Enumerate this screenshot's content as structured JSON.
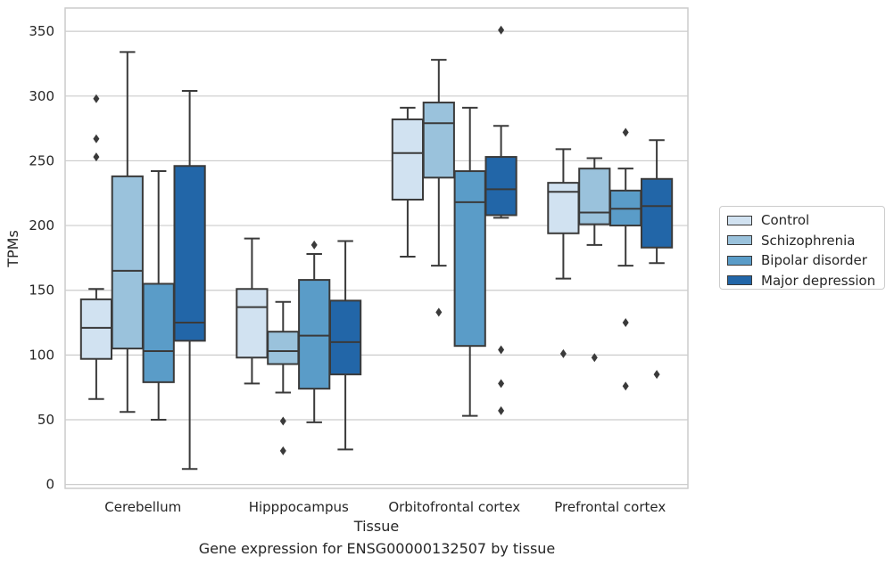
{
  "chart_data": {
    "type": "box",
    "title": "Gene expression for ENSG00000132507 by tissue",
    "xlabel": "Tissue",
    "ylabel": "TPMs",
    "ylim": [
      -3,
      368
    ],
    "yticks": [
      0,
      50,
      100,
      150,
      200,
      250,
      300,
      350
    ],
    "grid": true,
    "legend_position": "right",
    "categories": [
      "Cerebellum",
      "Hipppocampus",
      "Orbitofrontal cortex",
      "Prefrontal cortex"
    ],
    "series": [
      {
        "name": "Control",
        "color": "#d1e2f1",
        "boxes": [
          {
            "whisker_low": 66,
            "q1": 97,
            "median": 121,
            "q3": 143,
            "whisker_high": 151,
            "outliers": [
              298,
              267,
              253
            ]
          },
          {
            "whisker_low": 78,
            "q1": 98,
            "median": 137,
            "q3": 151,
            "whisker_high": 190,
            "outliers": []
          },
          {
            "whisker_low": 176,
            "q1": 220,
            "median": 256,
            "q3": 282,
            "whisker_high": 291,
            "outliers": []
          },
          {
            "whisker_low": 159,
            "q1": 194,
            "median": 226,
            "q3": 233,
            "whisker_high": 259,
            "outliers": [
              101
            ]
          }
        ]
      },
      {
        "name": "Schizophrenia",
        "color": "#9ac2dc",
        "boxes": [
          {
            "whisker_low": 56,
            "q1": 105,
            "median": 165,
            "q3": 238,
            "whisker_high": 334,
            "outliers": []
          },
          {
            "whisker_low": 71,
            "q1": 93,
            "median": 103,
            "q3": 118,
            "whisker_high": 141,
            "outliers": [
              49,
              26
            ]
          },
          {
            "whisker_low": 169,
            "q1": 237,
            "median": 279,
            "q3": 295,
            "whisker_high": 328,
            "outliers": [
              133
            ]
          },
          {
            "whisker_low": 185,
            "q1": 201,
            "median": 210,
            "q3": 244,
            "whisker_high": 252,
            "outliers": [
              98
            ]
          }
        ]
      },
      {
        "name": "Bipolar disorder",
        "color": "#5a9cc8",
        "boxes": [
          {
            "whisker_low": 50,
            "q1": 79,
            "median": 103,
            "q3": 155,
            "whisker_high": 242,
            "outliers": []
          },
          {
            "whisker_low": 48,
            "q1": 74,
            "median": 115,
            "q3": 158,
            "whisker_high": 178,
            "outliers": [
              185
            ]
          },
          {
            "whisker_low": 53,
            "q1": 107,
            "median": 218,
            "q3": 242,
            "whisker_high": 291,
            "outliers": []
          },
          {
            "whisker_low": 169,
            "q1": 200,
            "median": 213,
            "q3": 227,
            "whisker_high": 244,
            "outliers": [
              272,
              125,
              76
            ]
          }
        ]
      },
      {
        "name": "Major depression",
        "color": "#2266a8",
        "boxes": [
          {
            "whisker_low": 12,
            "q1": 111,
            "median": 125,
            "q3": 246,
            "whisker_high": 304,
            "outliers": []
          },
          {
            "whisker_low": 27,
            "q1": 85,
            "median": 110,
            "q3": 142,
            "whisker_high": 188,
            "outliers": []
          },
          {
            "whisker_low": 206,
            "q1": 208,
            "median": 228,
            "q3": 253,
            "whisker_high": 277,
            "outliers": [
              351,
              104,
              78,
              57
            ]
          },
          {
            "whisker_low": 171,
            "q1": 183,
            "median": 215,
            "q3": 236,
            "whisker_high": 266,
            "outliers": [
              85
            ]
          }
        ]
      }
    ]
  }
}
